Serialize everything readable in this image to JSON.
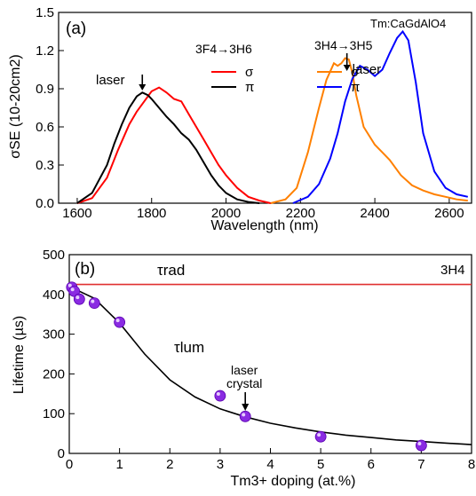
{
  "chart_data": [
    {
      "panel": "(a)",
      "type": "line",
      "xlabel": "Wavelength (nm)",
      "ylabel": "σSE (10-20cm2)",
      "xlim": [
        1550,
        2660
      ],
      "ylim": [
        0,
        1.5
      ],
      "xticks": [
        1600,
        1800,
        2000,
        2200,
        2400,
        2600
      ],
      "yticks": [
        "0.0",
        "0.3",
        "0.6",
        "0.9",
        "1.2",
        "1.5"
      ],
      "grid": false,
      "crystal_label": "Tm:CaGdAlO4",
      "transitions": [
        {
          "label": "3F4→3H6",
          "legend": [
            {
              "symbol": "σ",
              "color": "#ff0000"
            },
            {
              "symbol": "π",
              "color": "#000000"
            }
          ]
        },
        {
          "label": "3H4→3H5",
          "legend": [
            {
              "symbol": "σ",
              "color": "#ff8000"
            },
            {
              "symbol": "π",
              "color": "#0000ff"
            }
          ]
        }
      ],
      "annotations": [
        {
          "text": "laser",
          "x": 1775
        },
        {
          "text": "laser",
          "x": 2325
        }
      ],
      "series": [
        {
          "transition": "3F4→3H6",
          "pol": "σ",
          "color": "#ff0000",
          "x": [
            1600,
            1640,
            1680,
            1710,
            1740,
            1760,
            1780,
            1800,
            1820,
            1840,
            1860,
            1880,
            1900,
            1920,
            1940,
            1960,
            1980,
            2000,
            2030,
            2060,
            2090,
            2120
          ],
          "y": [
            0.0,
            0.04,
            0.2,
            0.42,
            0.62,
            0.72,
            0.8,
            0.88,
            0.91,
            0.87,
            0.82,
            0.8,
            0.7,
            0.6,
            0.5,
            0.4,
            0.3,
            0.22,
            0.12,
            0.05,
            0.02,
            0.0
          ]
        },
        {
          "transition": "3F4→3H6",
          "pol": "π",
          "color": "#000000",
          "x": [
            1600,
            1640,
            1680,
            1700,
            1720,
            1740,
            1760,
            1775,
            1790,
            1800,
            1820,
            1840,
            1860,
            1880,
            1900,
            1920,
            1940,
            1960,
            1980,
            2000,
            2030,
            2060,
            2090
          ],
          "y": [
            0.0,
            0.08,
            0.3,
            0.47,
            0.62,
            0.75,
            0.84,
            0.87,
            0.85,
            0.82,
            0.75,
            0.68,
            0.62,
            0.55,
            0.5,
            0.42,
            0.32,
            0.22,
            0.14,
            0.08,
            0.03,
            0.01,
            0.0
          ]
        },
        {
          "transition": "3H4→3H5",
          "pol": "σ",
          "color": "#ff8000",
          "x": [
            2120,
            2160,
            2190,
            2220,
            2250,
            2270,
            2290,
            2300,
            2310,
            2320,
            2330,
            2340,
            2350,
            2370,
            2400,
            2420,
            2440,
            2470,
            2500,
            2530,
            2560,
            2590,
            2620,
            2650
          ],
          "y": [
            0.0,
            0.03,
            0.12,
            0.4,
            0.75,
            0.97,
            1.1,
            1.08,
            1.1,
            1.14,
            1.13,
            1.02,
            0.85,
            0.6,
            0.46,
            0.4,
            0.34,
            0.22,
            0.14,
            0.1,
            0.07,
            0.05,
            0.03,
            0.02
          ]
        },
        {
          "transition": "3H4→3H5",
          "pol": "π",
          "color": "#0000ff",
          "x": [
            2180,
            2220,
            2250,
            2280,
            2300,
            2320,
            2340,
            2360,
            2380,
            2400,
            2420,
            2440,
            2460,
            2475,
            2490,
            2510,
            2530,
            2560,
            2590,
            2620,
            2650
          ],
          "y": [
            0.0,
            0.05,
            0.15,
            0.35,
            0.55,
            0.8,
            0.98,
            1.08,
            1.05,
            1.0,
            1.05,
            1.18,
            1.3,
            1.35,
            1.28,
            0.95,
            0.55,
            0.25,
            0.12,
            0.07,
            0.05
          ]
        }
      ]
    },
    {
      "panel": "(b)",
      "type": "scatter",
      "xlabel": "Tm3+ doping (at.%)",
      "ylabel": "Lifetime (µs)",
      "xlim": [
        0,
        8
      ],
      "ylim": [
        0,
        500
      ],
      "xticks": [
        0,
        1,
        2,
        3,
        4,
        5,
        6,
        7,
        8
      ],
      "yticks": [
        0,
        100,
        200,
        300,
        400,
        500
      ],
      "grid": false,
      "level_label": "3H4",
      "rad_line": {
        "label": "τrad",
        "y": 425,
        "color": "#e03030"
      },
      "fit_label": "τlum",
      "annotation": {
        "text": [
          "laser",
          "crystal"
        ],
        "x": 3.5
      },
      "points": {
        "color": "#8a2be2",
        "x": [
          0.05,
          0.1,
          0.2,
          0.5,
          1.0,
          3.0,
          3.5,
          5.0,
          7.0
        ],
        "y": [
          418,
          408,
          388,
          378,
          330,
          145,
          93,
          42,
          20
        ]
      },
      "fit": {
        "x": [
          0,
          0.5,
          1,
          1.5,
          2,
          2.5,
          3,
          3.5,
          4,
          4.5,
          5,
          5.5,
          6,
          6.5,
          7,
          7.5,
          8
        ],
        "y": [
          420,
          390,
          328,
          250,
          185,
          142,
          112,
          92,
          76,
          64,
          54,
          46,
          40,
          34,
          30,
          26,
          22
        ]
      }
    }
  ]
}
